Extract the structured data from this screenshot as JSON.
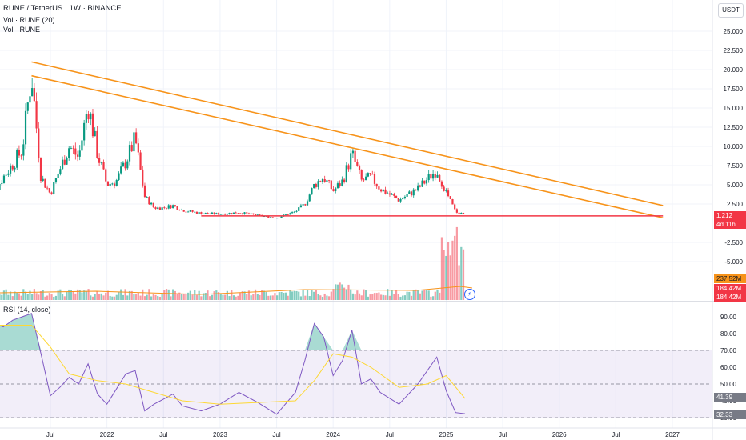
{
  "header": {
    "title": "RUNE / TetherUS · 1W · BINANCE",
    "legend_volume_ma": "Vol · RUNE (20)",
    "legend_volume": "Vol · RUNE",
    "rsi_label": "RSI (14, close)",
    "currency": "USDT"
  },
  "price_tags": {
    "last_price": "1.212",
    "countdown": "4d 11h",
    "vol_ma": "237.52M",
    "vol_1": "184.42M",
    "vol_2": "184.42M",
    "rsi_ma": "41.39",
    "rsi": "32.33"
  },
  "colors": {
    "up": "#089981",
    "down": "#f23645",
    "trendline": "#f7931a",
    "support": "#f23645",
    "rsi_line": "#7e57c2",
    "rsi_ma": "#fdd835",
    "rsi_band": "#7e57c2"
  },
  "chart_data": [
    {
      "type": "candlestick",
      "series_name": "RUNE / TetherUS",
      "timeframe": "1W",
      "y_ticks": [
        25,
        22.5,
        20,
        17.5,
        15,
        12.5,
        10,
        7.5,
        5,
        2.5,
        -2.5,
        -5
      ],
      "y_tick_labels": [
        "25.000",
        "22.500",
        "20.000",
        "17.500",
        "15.000",
        "12.500",
        "10.000",
        "7.500",
        "5.000",
        "2.500",
        "-2.500",
        "-5.000"
      ],
      "x_tick_labels": [
        "Jul",
        "2022",
        "Jul",
        "2023",
        "Jul",
        "2024",
        "Jul",
        "2025",
        "Jul",
        "2026",
        "Jul",
        "2027"
      ],
      "x_ticks": [
        "2021-07",
        "2022-01",
        "2022-07",
        "2023-01",
        "2023-07",
        "2024-01",
        "2024-07",
        "2025-01",
        "2025-07",
        "2026-01",
        "2026-07",
        "2027-01"
      ],
      "price_path": [
        [
          "2020-12",
          2.0
        ],
        [
          "2021-02",
          6.0
        ],
        [
          "2021-04",
          9.5
        ],
        [
          "2021-05",
          19.5
        ],
        [
          "2021-06",
          6.0
        ],
        [
          "2021-07",
          3.8
        ],
        [
          "2021-08",
          7.0
        ],
        [
          "2021-09",
          10.0
        ],
        [
          "2021-10",
          8.5
        ],
        [
          "2021-11",
          15.5
        ],
        [
          "2021-12",
          9.0
        ],
        [
          "2022-01",
          5.0
        ],
        [
          "2022-02",
          5.5
        ],
        [
          "2022-03",
          8.0
        ],
        [
          "2022-04",
          11.0
        ],
        [
          "2022-05",
          3.5
        ],
        [
          "2022-06",
          2.0
        ],
        [
          "2022-07",
          2.0
        ],
        [
          "2022-08",
          2.3
        ],
        [
          "2022-09",
          1.7
        ],
        [
          "2022-11",
          1.3
        ],
        [
          "2023-01",
          1.2
        ],
        [
          "2023-03",
          1.4
        ],
        [
          "2023-05",
          1.0
        ],
        [
          "2023-07",
          0.7
        ],
        [
          "2023-09",
          1.5
        ],
        [
          "2023-10",
          2.5
        ],
        [
          "2023-11",
          5.0
        ],
        [
          "2023-12",
          6.0
        ],
        [
          "2024-01",
          4.2
        ],
        [
          "2024-02",
          5.5
        ],
        [
          "2024-03",
          9.0
        ],
        [
          "2024-04",
          5.5
        ],
        [
          "2024-05",
          6.0
        ],
        [
          "2024-06",
          4.5
        ],
        [
          "2024-08",
          3.0
        ],
        [
          "2024-10",
          4.5
        ],
        [
          "2024-12",
          7.0
        ],
        [
          "2025-01",
          4.0
        ],
        [
          "2025-02",
          1.5
        ],
        [
          "2025-03",
          1.212
        ]
      ],
      "trendline_upper": [
        [
          "2021-05",
          21.0
        ],
        [
          "2026-12",
          2.3
        ]
      ],
      "trendline_lower": [
        [
          "2021-05",
          19.2
        ],
        [
          "2026-12",
          0.7
        ]
      ],
      "support_line": {
        "value": 0.95,
        "from": "2022-11",
        "to": "2026-12"
      },
      "last_price": 1.212,
      "volume_ma": 237.52,
      "volume": 184.42,
      "volume_unit": "M"
    },
    {
      "type": "line",
      "title": "RSI (14, close)",
      "y_ticks": [
        90,
        80,
        70,
        60,
        50,
        40,
        30
      ],
      "y_tick_labels": [
        "90.00",
        "80.00",
        "70.00",
        "60.00",
        "50.00",
        "40.00",
        "30.00"
      ],
      "band": [
        30,
        70
      ],
      "series": [
        {
          "name": "RSI",
          "points": [
            [
              "2020-12",
              80
            ],
            [
              "2021-01",
              86
            ],
            [
              "2021-02",
              84
            ],
            [
              "2021-03",
              88
            ],
            [
              "2021-04",
              90
            ],
            [
              "2021-05",
              92
            ],
            [
              "2021-06",
              68
            ],
            [
              "2021-07",
              43
            ],
            [
              "2021-08",
              48
            ],
            [
              "2021-09",
              54
            ],
            [
              "2021-10",
              50
            ],
            [
              "2021-11",
              62
            ],
            [
              "2021-12",
              44
            ],
            [
              "2022-01",
              38
            ],
            [
              "2022-02",
              47
            ],
            [
              "2022-03",
              56
            ],
            [
              "2022-04",
              58
            ],
            [
              "2022-05",
              34
            ],
            [
              "2022-06",
              38
            ],
            [
              "2022-07",
              41
            ],
            [
              "2022-08",
              44
            ],
            [
              "2022-09",
              37
            ],
            [
              "2022-11",
              34
            ],
            [
              "2023-01",
              38
            ],
            [
              "2023-03",
              45
            ],
            [
              "2023-05",
              39
            ],
            [
              "2023-07",
              32
            ],
            [
              "2023-09",
              45
            ],
            [
              "2023-10",
              64
            ],
            [
              "2023-11",
              86
            ],
            [
              "2023-12",
              78
            ],
            [
              "2024-01",
              55
            ],
            [
              "2024-02",
              64
            ],
            [
              "2024-03",
              82
            ],
            [
              "2024-04",
              50
            ],
            [
              "2024-05",
              53
            ],
            [
              "2024-06",
              45
            ],
            [
              "2024-08",
              38
            ],
            [
              "2024-10",
              50
            ],
            [
              "2024-12",
              66
            ],
            [
              "2025-01",
              46
            ],
            [
              "2025-02",
              33
            ],
            [
              "2025-03",
              32.33
            ]
          ]
        },
        {
          "name": "RSI-based MA",
          "points": [
            [
              "2020-12",
              85
            ],
            [
              "2021-05",
              85
            ],
            [
              "2021-07",
              72
            ],
            [
              "2021-09",
              56
            ],
            [
              "2021-12",
              52
            ],
            [
              "2022-03",
              50
            ],
            [
              "2022-06",
              45
            ],
            [
              "2022-09",
              40
            ],
            [
              "2023-01",
              38
            ],
            [
              "2023-05",
              39
            ],
            [
              "2023-09",
              40
            ],
            [
              "2023-11",
              52
            ],
            [
              "2024-01",
              68
            ],
            [
              "2024-03",
              66
            ],
            [
              "2024-05",
              60
            ],
            [
              "2024-08",
              48
            ],
            [
              "2024-11",
              50
            ],
            [
              "2025-01",
              55
            ],
            [
              "2025-03",
              41.39
            ]
          ]
        }
      ]
    }
  ]
}
